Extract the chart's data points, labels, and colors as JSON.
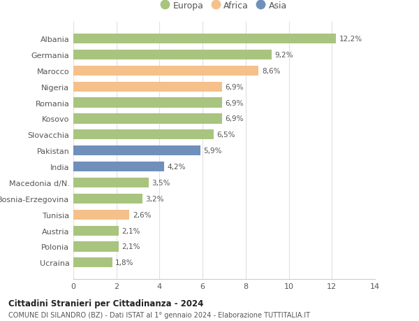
{
  "categories": [
    "Albania",
    "Germania",
    "Marocco",
    "Nigeria",
    "Romania",
    "Kosovo",
    "Slovacchia",
    "Pakistan",
    "India",
    "Macedonia d/N.",
    "Bosnia-Erzegovina",
    "Tunisia",
    "Austria",
    "Polonia",
    "Ucraina"
  ],
  "values": [
    12.2,
    9.2,
    8.6,
    6.9,
    6.9,
    6.9,
    6.5,
    5.9,
    4.2,
    3.5,
    3.2,
    2.6,
    2.1,
    2.1,
    1.8
  ],
  "labels": [
    "12,2%",
    "9,2%",
    "8,6%",
    "6,9%",
    "6,9%",
    "6,9%",
    "6,5%",
    "5,9%",
    "4,2%",
    "3,5%",
    "3,2%",
    "2,6%",
    "2,1%",
    "2,1%",
    "1,8%"
  ],
  "continents": [
    "Europa",
    "Europa",
    "Africa",
    "Africa",
    "Europa",
    "Europa",
    "Europa",
    "Asia",
    "Asia",
    "Europa",
    "Europa",
    "Africa",
    "Europa",
    "Europa",
    "Europa"
  ],
  "colors": {
    "Europa": "#a8c47f",
    "Africa": "#f5c08a",
    "Asia": "#7090bb"
  },
  "legend_labels": [
    "Europa",
    "Africa",
    "Asia"
  ],
  "title1": "Cittadini Stranieri per Cittadinanza - 2024",
  "title2": "COMUNE DI SILANDRO (BZ) - Dati ISTAT al 1° gennaio 2024 - Elaborazione TUTTITALIA.IT",
  "xlim": [
    0,
    14
  ],
  "xticks": [
    0,
    2,
    4,
    6,
    8,
    10,
    12,
    14
  ],
  "background_color": "#ffffff",
  "grid_color": "#e0e0e0",
  "bar_height": 0.62,
  "figsize": [
    6.0,
    4.6
  ],
  "dpi": 100
}
